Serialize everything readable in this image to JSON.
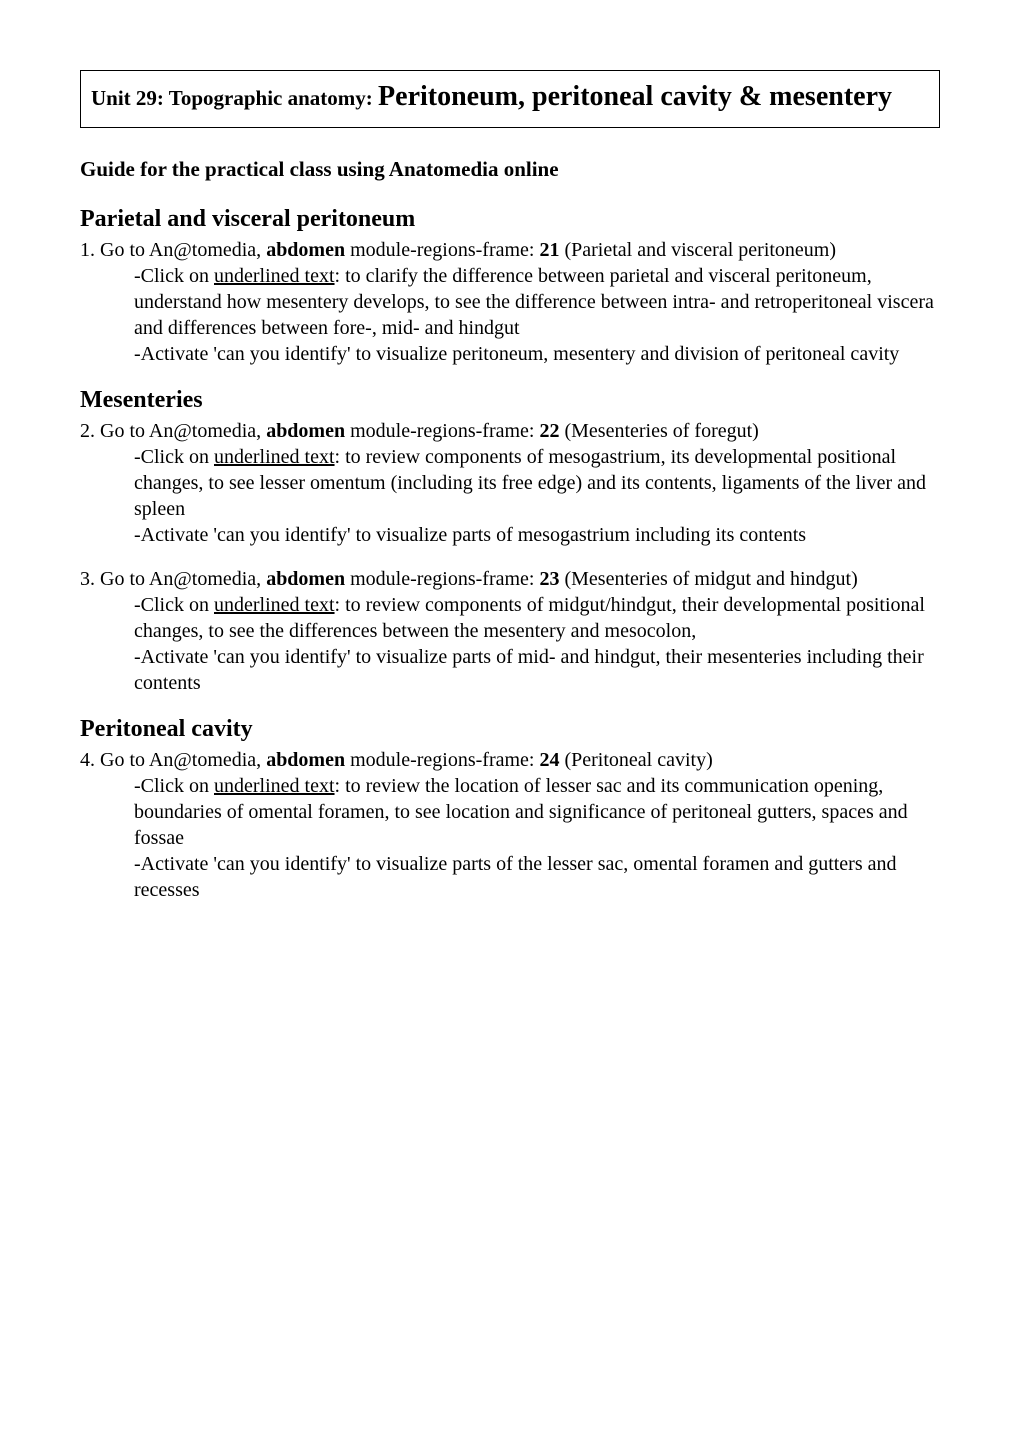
{
  "title": {
    "prefix": "Unit 29: Topographic anatomy: ",
    "main": "Peritoneum, peritoneal cavity & mesentery"
  },
  "guide": "Guide for the practical class using Anatomedia online",
  "sections": [
    {
      "heading": "Parietal and visceral peritoneum",
      "items": [
        {
          "intro_a": "1. Go to An@tomedia, ",
          "intro_bold": "abdomen",
          "intro_b": " module-regions-frame: ",
          "intro_frame": "21",
          "intro_c": " (Parietal and visceral peritoneum)",
          "sub1_a": "-Click on ",
          "sub1_u": "underlined text",
          "sub1_b": ": to clarify the difference between parietal and visceral peritoneum, understand how mesentery develops, to see the difference between intra- and retroperitoneal viscera and differences between fore-, mid- and hindgut",
          "sub2": "-Activate 'can you identify' to visualize peritoneum, mesentery and division of peritoneal cavity"
        }
      ]
    },
    {
      "heading": "Mesenteries",
      "items": [
        {
          "intro_a": "2. Go to An@tomedia, ",
          "intro_bold": "abdomen",
          "intro_b": " module-regions-frame: ",
          "intro_frame": "22",
          "intro_c": " (Mesenteries of foregut)",
          "sub1_a": "-Click on ",
          "sub1_u": "underlined text",
          "sub1_b": ": to review components of mesogastrium, its developmental positional changes, to see lesser omentum (including its free edge) and its contents, ligaments of the liver and spleen",
          "sub2": "-Activate 'can you identify' to visualize parts of mesogastrium including its contents"
        },
        {
          "intro_a": "3. Go to An@tomedia, ",
          "intro_bold": "abdomen",
          "intro_b": " module-regions-frame: ",
          "intro_frame": "23",
          "intro_c": " (Mesenteries of midgut and hindgut)",
          "sub1_a": "-Click on ",
          "sub1_u": "underlined text",
          "sub1_b": ": to review components of midgut/hindgut, their developmental positional changes, to see the differences between the mesentery and mesocolon,",
          "sub2": "-Activate 'can you identify' to visualize parts of mid- and hindgut, their mesenteries including their contents"
        }
      ]
    },
    {
      "heading": "Peritoneal cavity",
      "items": [
        {
          "intro_a": "4. Go to An@tomedia, ",
          "intro_bold": "abdomen",
          "intro_b": " module-regions-frame: ",
          "intro_frame": "24",
          "intro_c": " (Peritoneal cavity)",
          "sub1_a": "-Click on ",
          "sub1_u": "underlined text",
          "sub1_b": ": to review the location of lesser sac and its communication opening, boundaries of omental foramen, to see location and significance of peritoneal gutters, spaces and fossae",
          "sub2": "-Activate 'can you identify' to visualize parts of the lesser sac, omental foramen and gutters and recesses"
        }
      ]
    }
  ]
}
